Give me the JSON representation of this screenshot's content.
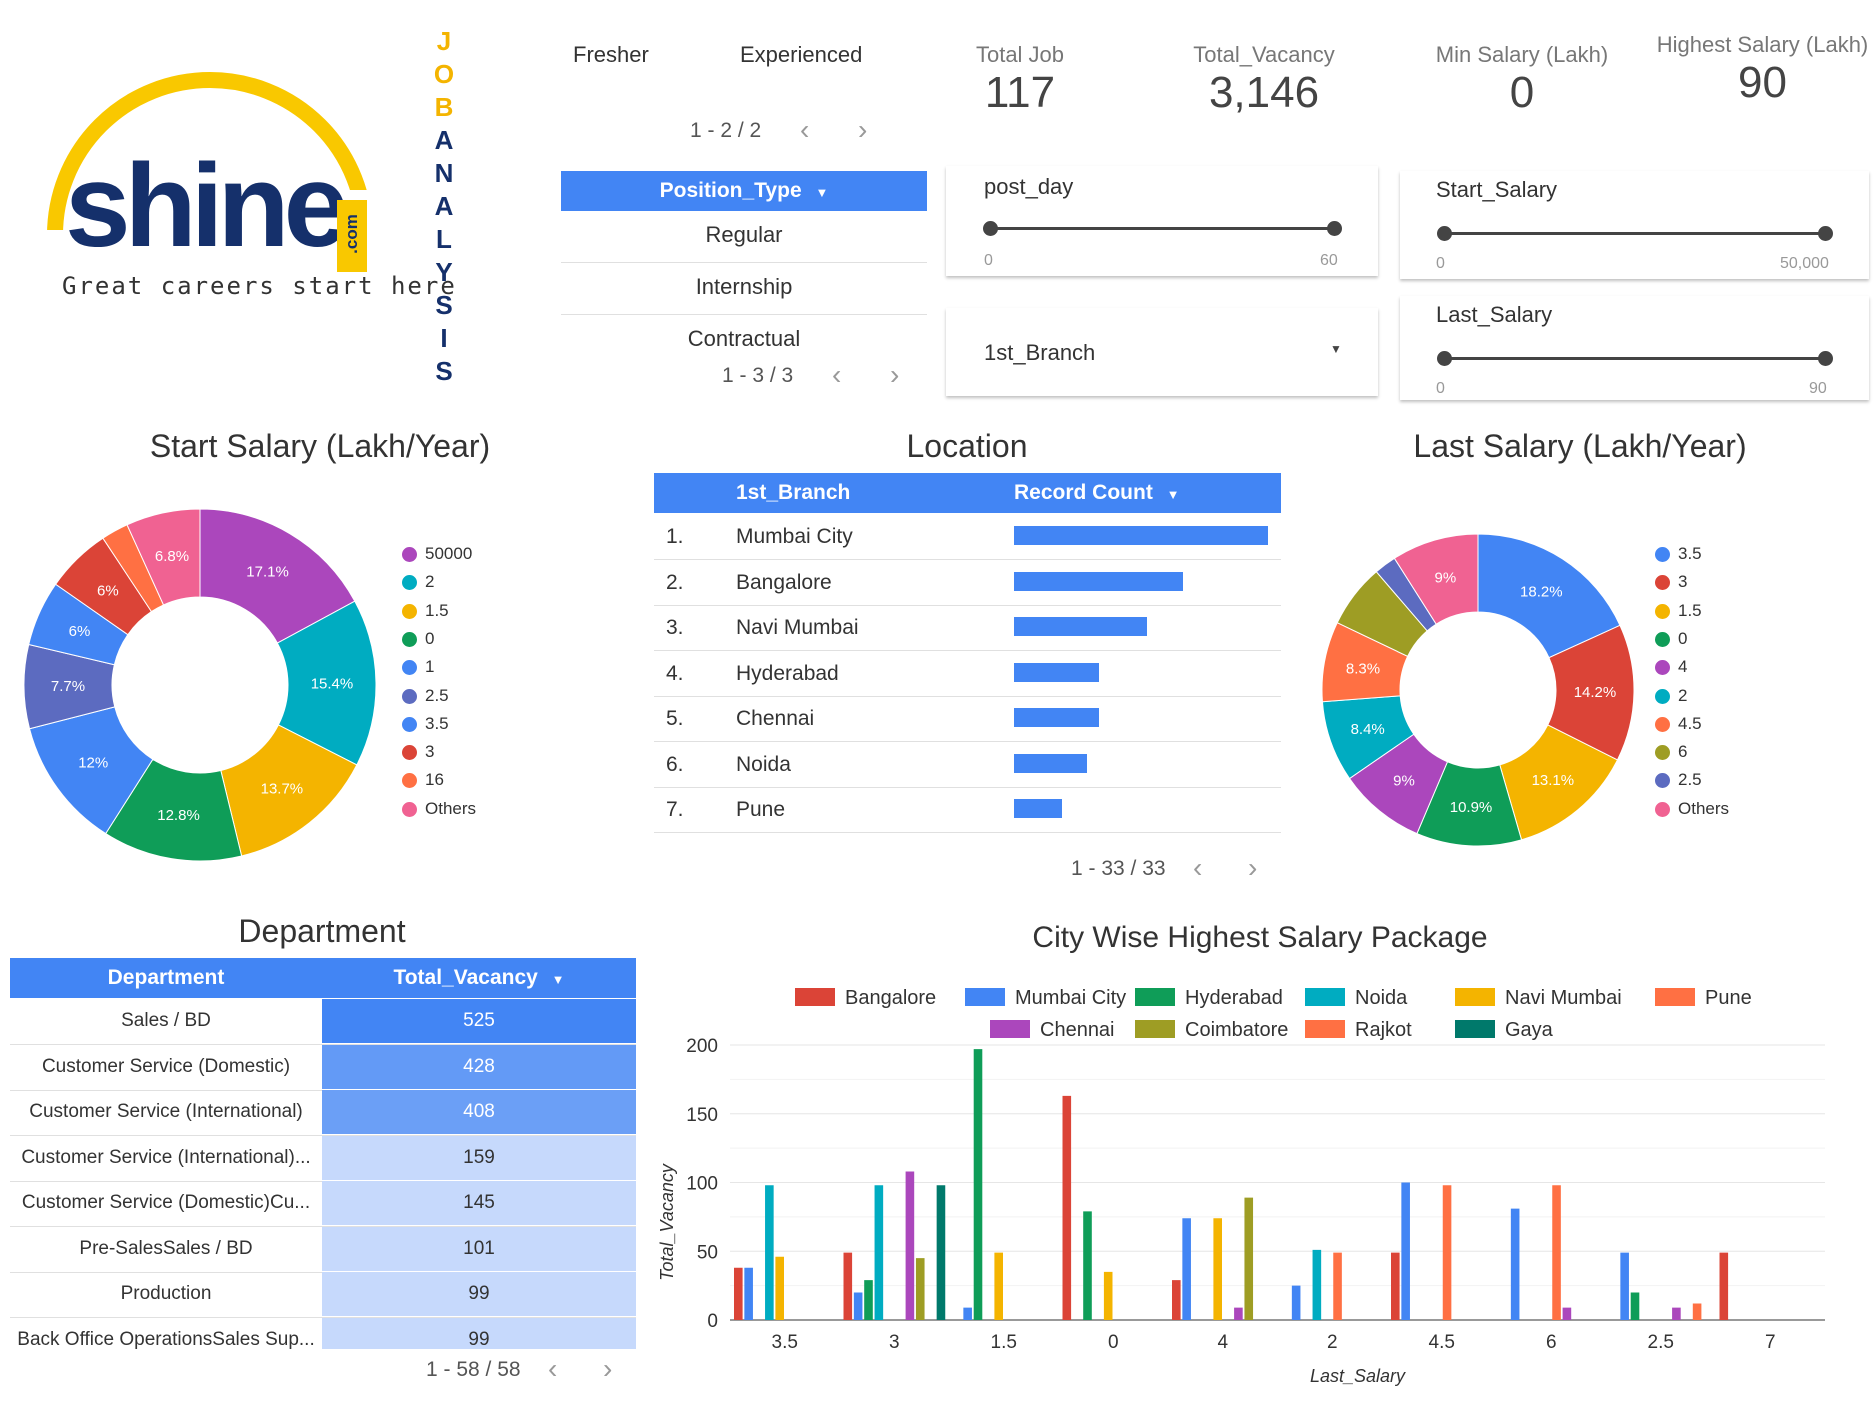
{
  "logo": {
    "wordmark": "shine",
    "suffix": ".com",
    "tagline": "Great careers start here"
  },
  "vertical_title": [
    "J",
    "O",
    "B",
    "A",
    "N",
    "A",
    "L",
    "Y",
    "S",
    "I",
    "S"
  ],
  "experience_tabs": {
    "items": [
      "Fresher",
      "Experienced"
    ],
    "pager": "1 - 2 / 2"
  },
  "position_type": {
    "header": "Position_Type",
    "items": [
      "Regular",
      "Internship",
      "Contractual"
    ],
    "pager": "1 - 3 / 3"
  },
  "kpis": [
    {
      "label": "Total Job",
      "value": "117"
    },
    {
      "label": "Total_Vacancy",
      "value": "3,146"
    },
    {
      "label": "Min Salary (Lakh)",
      "value": "0"
    },
    {
      "label": "Highest Salary (Lakh)",
      "value": "90"
    }
  ],
  "filters": {
    "post_day": {
      "label": "post_day",
      "min": "0",
      "max": "60"
    },
    "start_salary": {
      "label": "Start_Salary",
      "min": "0",
      "max": "50,000"
    },
    "last_salary": {
      "label": "Last_Salary",
      "min": "0",
      "max": "90"
    },
    "branch": {
      "label": "1st_Branch"
    }
  },
  "colors": {
    "blue": "#4285f4",
    "light_blue": "#c6d9fc"
  },
  "chart_data": [
    {
      "type": "pie",
      "title": "Start Salary (Lakh/Year)",
      "labels": [
        "50000",
        "2",
        "1.5",
        "0",
        "1",
        "2.5",
        "3.5",
        "3",
        "16",
        "Others"
      ],
      "values": [
        17.1,
        15.4,
        13.7,
        12.8,
        12.0,
        7.7,
        6.0,
        6.0,
        2.5,
        6.8
      ],
      "display_labels": [
        "17.1%",
        "15.4%",
        "13.7%",
        "12.8%",
        "12%",
        "7.7%",
        "6%",
        "6%",
        "",
        "6.8%"
      ],
      "colors": [
        "#ab47bc",
        "#00acc1",
        "#f4b400",
        "#0f9d58",
        "#4285f4",
        "#5c6bc0",
        "#4285f4",
        "#db4437",
        "#ff7043",
        "#f06292"
      ],
      "legend": "right"
    },
    {
      "type": "bar",
      "title": "Location",
      "columns": [
        "1st_Branch",
        "Record Count"
      ],
      "categories": [
        "Mumbai City",
        "Bangalore",
        "Navi Mumbai",
        "Hyderabad",
        "Chennai",
        "Noida",
        "Pune"
      ],
      "values": [
        21,
        14,
        11,
        7,
        7,
        6,
        4
      ],
      "pager": "1 - 33 / 33"
    },
    {
      "type": "pie",
      "title": "Last Salary (Lakh/Year)",
      "labels": [
        "3.5",
        "3",
        "1.5",
        "0",
        "4",
        "2",
        "4.5",
        "6",
        "2.5",
        "Others"
      ],
      "values": [
        18.2,
        14.2,
        13.1,
        10.9,
        9.0,
        8.4,
        8.3,
        6.6,
        2.3,
        9.0
      ],
      "display_labels": [
        "18.2%",
        "14.2%",
        "13.1%",
        "10.9%",
        "9%",
        "8.4%",
        "8.3%",
        "",
        "",
        "9%"
      ],
      "colors": [
        "#4285f4",
        "#db4437",
        "#f4b400",
        "#0f9d58",
        "#ab47bc",
        "#00acc1",
        "#ff7043",
        "#9e9d24",
        "#5c6bc0",
        "#f06292"
      ],
      "legend": "right"
    },
    {
      "type": "table",
      "title": "Department",
      "columns": [
        "Department",
        "Total_Vacancy"
      ],
      "rows": [
        {
          "name": "Sales / BD",
          "value": "525",
          "level": 1.0
        },
        {
          "name": "Customer Service (Domestic)",
          "value": "428",
          "level": 0.82
        },
        {
          "name": "Customer Service (International)",
          "value": "408",
          "level": 0.78
        },
        {
          "name": "Customer Service (International)...",
          "value": "159",
          "level": 0.3
        },
        {
          "name": "Customer Service (Domestic)Cu...",
          "value": "145",
          "level": 0.28
        },
        {
          "name": "Pre-SalesSales / BD",
          "value": "101",
          "level": 0.2
        },
        {
          "name": "Production",
          "value": "99",
          "level": 0.19
        },
        {
          "name": "Back Office OperationsSales Sup...",
          "value": "99",
          "level": 0.19
        }
      ],
      "pager": "1 - 58 / 58"
    },
    {
      "type": "bar",
      "title": "City Wise Highest Salary Package",
      "xlabel": "Last_Salary",
      "ylabel": "Total_Vacancy",
      "ylim": [
        0,
        200
      ],
      "yticks": [
        "0",
        "50",
        "100",
        "150",
        "200"
      ],
      "categories": [
        "3.5",
        "3",
        "1.5",
        "0",
        "4",
        "2",
        "4.5",
        "6",
        "2.5",
        "7"
      ],
      "series": [
        {
          "name": "Bangalore",
          "color": "#db4437",
          "values": [
            38,
            49,
            0,
            163,
            29,
            0,
            49,
            0,
            0,
            49
          ]
        },
        {
          "name": "Mumbai City",
          "color": "#4285f4",
          "values": [
            38,
            20,
            9,
            0,
            74,
            25,
            100,
            81,
            49,
            0
          ]
        },
        {
          "name": "Hyderabad",
          "color": "#0f9d58",
          "values": [
            0,
            29,
            197,
            79,
            0,
            0,
            0,
            0,
            20,
            0
          ]
        },
        {
          "name": "Noida",
          "color": "#00acc1",
          "values": [
            98,
            98,
            0,
            0,
            0,
            51,
            0,
            0,
            0,
            0
          ]
        },
        {
          "name": "Navi Mumbai",
          "color": "#f4b400",
          "values": [
            46,
            0,
            49,
            35,
            74,
            0,
            0,
            0,
            0,
            0
          ]
        },
        {
          "name": "Pune",
          "color": "#ff7043",
          "values": [
            0,
            0,
            0,
            0,
            0,
            49,
            98,
            98,
            0,
            0
          ]
        },
        {
          "name": "Chennai",
          "color": "#ab47bc",
          "values": [
            0,
            108,
            0,
            0,
            9,
            0,
            0,
            9,
            9,
            0
          ]
        },
        {
          "name": "Coimbatore",
          "color": "#9e9d24",
          "values": [
            0,
            45,
            0,
            0,
            89,
            0,
            0,
            0,
            0,
            0
          ]
        },
        {
          "name": "Rajkot",
          "color": "#ff7043",
          "values": [
            0,
            0,
            0,
            0,
            0,
            0,
            0,
            0,
            12,
            0
          ]
        },
        {
          "name": "Gaya",
          "color": "#00796b",
          "values": [
            0,
            98,
            0,
            0,
            0,
            0,
            0,
            0,
            0,
            0
          ]
        }
      ]
    }
  ]
}
